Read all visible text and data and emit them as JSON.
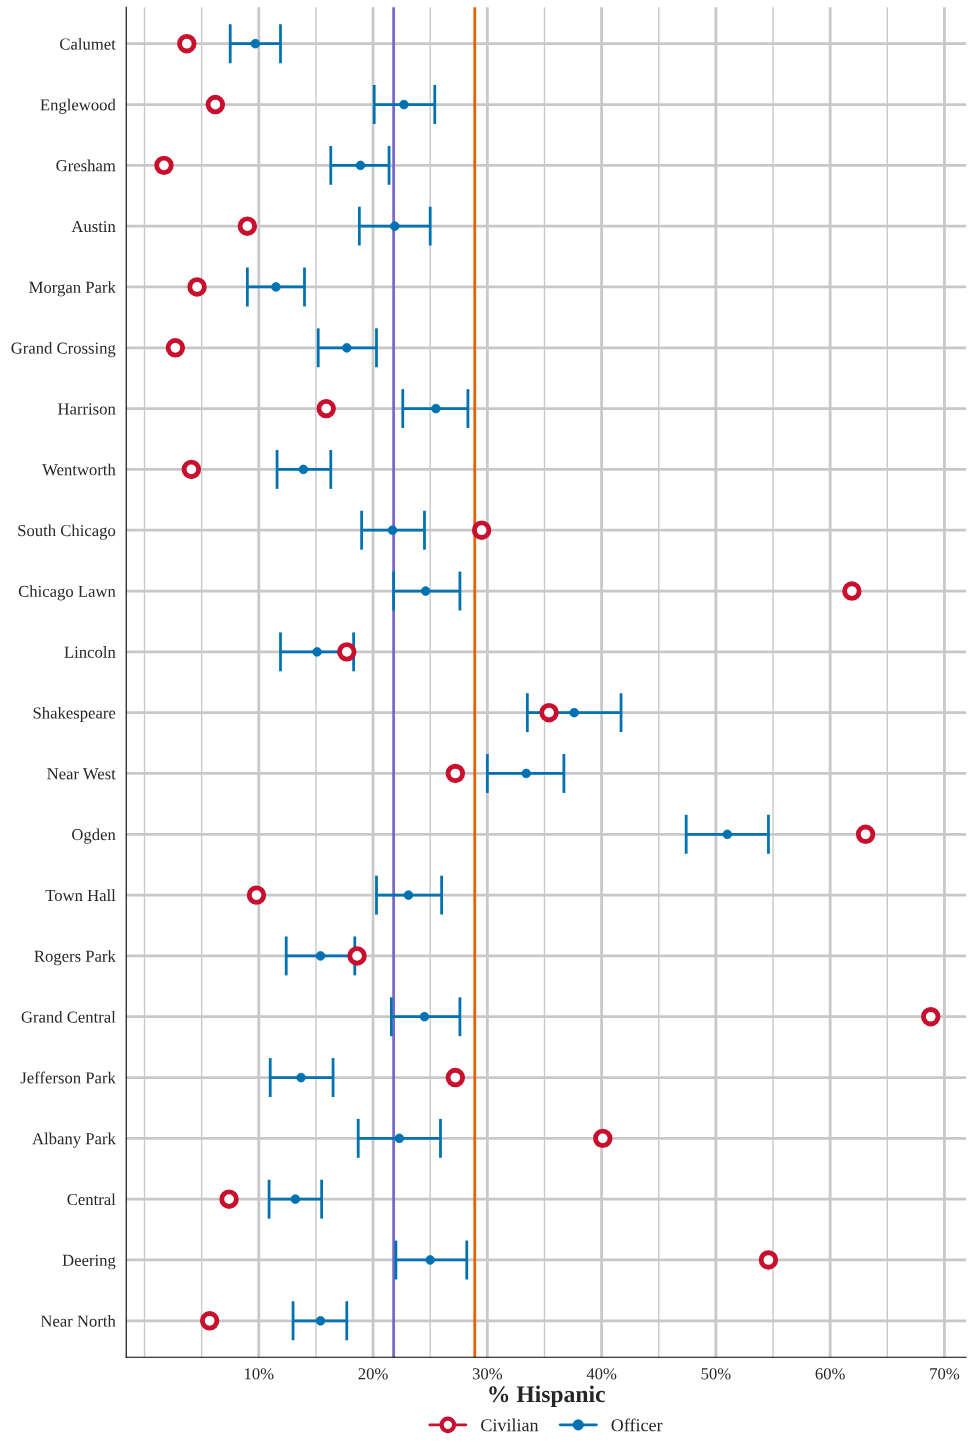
{
  "chart_data": {
    "type": "scatter",
    "orientation": "horizontal",
    "xlabel": "% Hispanic",
    "categories": [
      "Calumet",
      "Englewood",
      "Gresham",
      "Austin",
      "Morgan Park",
      "Grand Crossing",
      "Harrison",
      "Wentworth",
      "South Chicago",
      "Chicago Lawn",
      "Lincoln",
      "Shakespeare",
      "Near West",
      "Ogden",
      "Town Hall",
      "Rogers Park",
      "Grand Central",
      "Jefferson Park",
      "Albany Park",
      "Central",
      "Deering",
      "Near North"
    ],
    "series": [
      {
        "name": "Civilian",
        "color": "#c8102e",
        "marker": "circle",
        "values": [
          3.7,
          6.2,
          1.7,
          9.0,
          4.6,
          2.7,
          15.9,
          4.1,
          29.5,
          61.9,
          17.7,
          35.4,
          27.2,
          63.1,
          9.8,
          18.6,
          68.8,
          27.2,
          40.1,
          7.4,
          54.6,
          5.7
        ]
      },
      {
        "name": "Officer",
        "color": "#0072b2",
        "marker": "circle",
        "values": [
          9.7,
          22.7,
          18.9,
          21.9,
          11.5,
          17.7,
          25.5,
          13.9,
          21.7,
          24.6,
          15.1,
          37.6,
          33.4,
          51.0,
          23.1,
          15.4,
          24.5,
          13.7,
          22.3,
          13.2,
          25.0,
          15.4
        ],
        "errors": [
          [
            7.5,
            11.9
          ],
          [
            20.1,
            25.4
          ],
          [
            16.3,
            21.4
          ],
          [
            18.8,
            25.0
          ],
          [
            9.0,
            14.0
          ],
          [
            15.2,
            20.3
          ],
          [
            22.6,
            28.3
          ],
          [
            11.6,
            16.3
          ],
          [
            19.0,
            24.5
          ],
          [
            21.8,
            27.6
          ],
          [
            11.9,
            18.3
          ],
          [
            33.5,
            41.7
          ],
          [
            30.0,
            36.7
          ],
          [
            47.4,
            54.6
          ],
          [
            20.3,
            26.0
          ],
          [
            12.4,
            18.4
          ],
          [
            21.6,
            27.6
          ],
          [
            11.0,
            16.5
          ],
          [
            18.7,
            25.9
          ],
          [
            10.9,
            15.5
          ],
          [
            22.0,
            28.2
          ],
          [
            13.0,
            17.7
          ]
        ]
      }
    ],
    "ref_lines": [
      {
        "axis": "x",
        "value": 21.8,
        "label": null,
        "color": "#7b68c8"
      },
      {
        "axis": "x",
        "value": 28.9,
        "label": null,
        "color": "#e66100"
      }
    ],
    "xlim": [
      -1.6,
      71.9
    ],
    "xticks": [
      {
        "value": 0,
        "label": null
      },
      {
        "value": 5,
        "label": null
      },
      {
        "value": 10,
        "label": "10%"
      },
      {
        "value": 15,
        "label": null
      },
      {
        "value": 20,
        "label": "20%"
      },
      {
        "value": 25,
        "label": null
      },
      {
        "value": 30,
        "label": "30%"
      },
      {
        "value": 35,
        "label": null
      },
      {
        "value": 40,
        "label": "40%"
      },
      {
        "value": 45,
        "label": null
      },
      {
        "value": 50,
        "label": "50%"
      },
      {
        "value": 55,
        "label": null
      },
      {
        "value": 60,
        "label": "60%"
      },
      {
        "value": 65,
        "label": null
      },
      {
        "value": 70,
        "label": "70%"
      }
    ],
    "grid": true,
    "legend": "bottom"
  }
}
